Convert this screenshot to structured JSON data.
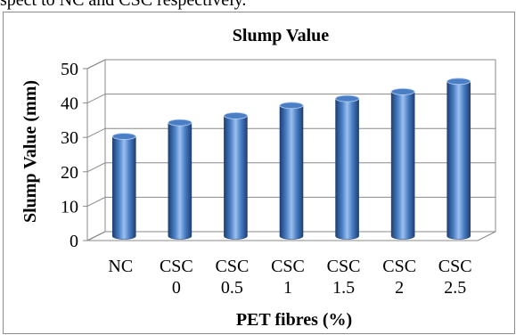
{
  "caption_fragment": "spect to NC and CSC respectively.",
  "chart_data": {
    "type": "bar",
    "title": "Slump Value",
    "xlabel": "PET fibres (%)",
    "ylabel": "Slump Value (mm)",
    "categories": [
      [
        "NC"
      ],
      [
        "CSC",
        "0"
      ],
      [
        "CSC",
        "0.5"
      ],
      [
        "CSC",
        "1"
      ],
      [
        "CSC",
        "1.5"
      ],
      [
        "CSC",
        "2"
      ],
      [
        "CSC",
        "2.5"
      ]
    ],
    "values": [
      29,
      33,
      35,
      38,
      40,
      42,
      45
    ],
    "ylim": [
      0,
      50
    ],
    "yticks": [
      0,
      10,
      20,
      30,
      40,
      50
    ],
    "grid": true,
    "legend": "none",
    "bar_style": "3d-cylinder",
    "colors": {
      "bar": "#4a7fc6",
      "bar_dark": "#1f3f73",
      "bar_light": "#bcd3f2",
      "grid": "#8a8a8a",
      "frame": "#8c8c8c"
    }
  }
}
